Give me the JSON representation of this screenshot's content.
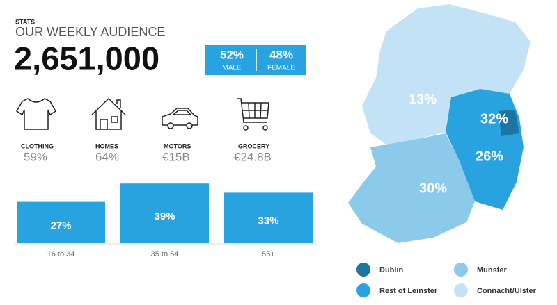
{
  "header": {
    "label": "STATS",
    "title": "OUR WEEKLY AUDIENCE"
  },
  "audience": "2,651,000",
  "gender": {
    "male_value": "52%",
    "male_label": "MALE",
    "female_value": "48%",
    "female_label": "FEMALE"
  },
  "spend": [
    {
      "label": "CLOTHING",
      "value": "59%"
    },
    {
      "label": "HOMES",
      "value": "64%"
    },
    {
      "label": "MOTORS",
      "value": "€15B"
    },
    {
      "label": "GROCERY",
      "value": "€24.8B"
    }
  ],
  "chart_data": {
    "type": "bar",
    "categories": [
      "16 to 34",
      "35 to 54",
      "55+"
    ],
    "values": [
      27,
      39,
      33
    ],
    "value_labels": [
      "27%",
      "39%",
      "33%"
    ],
    "color": "#29a3e0",
    "ylim": [
      0,
      40
    ]
  },
  "map": {
    "regions": [
      {
        "name": "Dublin",
        "value": "32%",
        "color": "#1b76a6"
      },
      {
        "name": "Rest of Leinster",
        "value": "26%",
        "color": "#29a3e0"
      },
      {
        "name": "Munster",
        "value": "30%",
        "color": "#8ccaec"
      },
      {
        "name": "Connacht/Ulster",
        "value": "13%",
        "color": "#c4e2f5"
      }
    ]
  }
}
